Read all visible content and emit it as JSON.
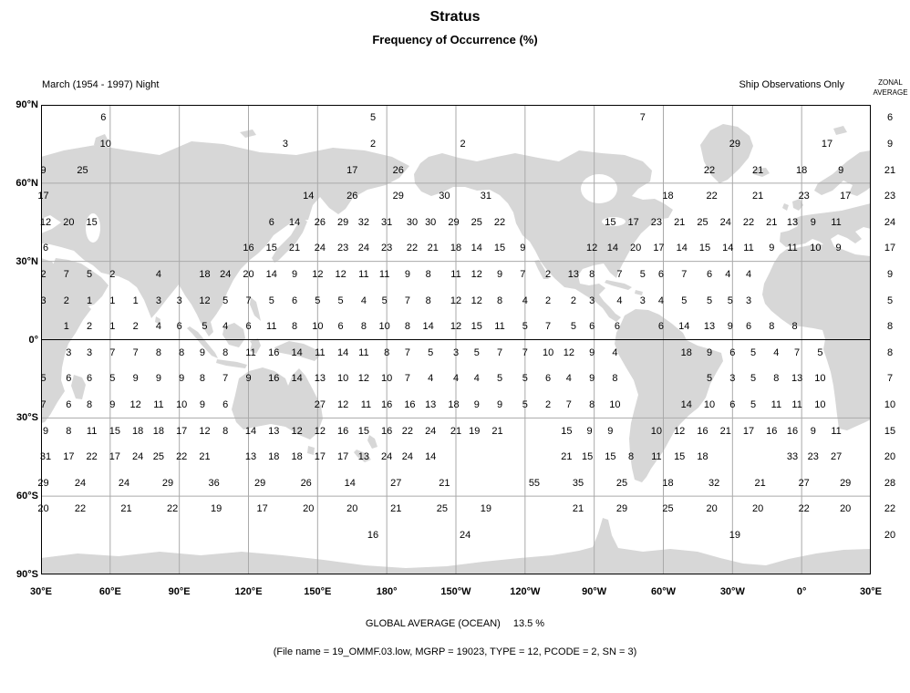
{
  "header": {
    "title": "Stratus",
    "subtitle": "Frequency of Occurrence (%)",
    "period": "March (1954 - 1997) Night",
    "source": "Ship Observations Only",
    "zonal_line1": "ZONAL",
    "zonal_line2": "AVERAGE"
  },
  "axes": {
    "lat": [
      "90°N",
      "60°N",
      "30°N",
      "0°",
      "30°S",
      "60°S",
      "90°S"
    ],
    "lon": [
      "30°E",
      "60°E",
      "90°E",
      "120°E",
      "150°E",
      "180°",
      "150°W",
      "120°W",
      "90°W",
      "60°W",
      "30°W",
      "0°",
      "30°E"
    ]
  },
  "footer": {
    "global_label": "GLOBAL AVERAGE (OCEAN)",
    "global_value": "13.5 %",
    "file_info": "(File name = 19_OMMF.03.low, MGRP = 19023, TYPE = 12, PCODE = 2, SN = 3)"
  },
  "colors": {
    "land": "#d7d7d7",
    "gridline": "#aaaaaa",
    "border": "#000000",
    "text": "#000000"
  },
  "chart_data": {
    "type": "heatmap",
    "title": "Stratus",
    "subtitle": "Frequency of Occurrence (%)",
    "units": "percent frequency of occurrence",
    "x_axis_labels": [
      "30°E",
      "60°E",
      "90°E",
      "120°E",
      "150°E",
      "180°",
      "150°W",
      "120°W",
      "90°W",
      "60°W",
      "30°W",
      "0°",
      "30°E"
    ],
    "y_axis_labels": [
      "90°N",
      "60°N",
      "30°N",
      "0°",
      "30°S",
      "60°S",
      "90°S"
    ],
    "global_average_ocean_pct": 13.5,
    "zonal_average": [
      6,
      9,
      21,
      23,
      24,
      17,
      9,
      5,
      8,
      8,
      7,
      10,
      15,
      20,
      28,
      22,
      20,
      null
    ],
    "rows_note": "18 latitude rows (10° bands, 90N to 90S); each value is [x-position in 10°-cell units from 30°E, value]",
    "rows": [
      [
        [
          2.7,
          6
        ],
        [
          14.4,
          5
        ],
        [
          26.1,
          7
        ]
      ],
      [
        [
          2.8,
          10
        ],
        [
          10.6,
          3
        ],
        [
          14.4,
          2
        ],
        [
          18.3,
          2
        ],
        [
          30.1,
          29
        ],
        [
          34.1,
          17
        ]
      ],
      [
        [
          0.1,
          9
        ],
        [
          1.8,
          25
        ],
        [
          13.5,
          17
        ],
        [
          15.5,
          26
        ],
        [
          29.0,
          22
        ],
        [
          31.1,
          21
        ],
        [
          33.0,
          18
        ],
        [
          34.7,
          9
        ]
      ],
      [
        [
          0.1,
          17
        ],
        [
          11.6,
          14
        ],
        [
          13.5,
          26
        ],
        [
          15.5,
          29
        ],
        [
          17.5,
          30
        ],
        [
          19.3,
          31
        ],
        [
          27.2,
          18
        ],
        [
          29.1,
          22
        ],
        [
          31.1,
          21
        ],
        [
          33.1,
          23
        ],
        [
          34.9,
          17
        ]
      ],
      [
        [
          0.2,
          12
        ],
        [
          1.2,
          20
        ],
        [
          2.2,
          15
        ],
        [
          10,
          6
        ],
        [
          11,
          14
        ],
        [
          12.1,
          26
        ],
        [
          13.1,
          29
        ],
        [
          14,
          32
        ],
        [
          15,
          31
        ],
        [
          16.1,
          30
        ],
        [
          16.9,
          30
        ],
        [
          17.9,
          29
        ],
        [
          18.9,
          25
        ],
        [
          19.9,
          22
        ],
        [
          24.7,
          15
        ],
        [
          25.7,
          17
        ],
        [
          26.7,
          23
        ],
        [
          27.7,
          21
        ],
        [
          28.7,
          25
        ],
        [
          29.7,
          24
        ],
        [
          30.7,
          22
        ],
        [
          31.7,
          21
        ],
        [
          32.6,
          13
        ],
        [
          33.5,
          9
        ],
        [
          34.5,
          11
        ]
      ],
      [
        [
          0.2,
          6
        ],
        [
          9,
          16
        ],
        [
          10,
          15
        ],
        [
          11,
          21
        ],
        [
          12.1,
          24
        ],
        [
          13.1,
          23
        ],
        [
          14,
          24
        ],
        [
          15,
          23
        ],
        [
          16.1,
          22
        ],
        [
          17,
          21
        ],
        [
          18,
          18
        ],
        [
          18.9,
          14
        ],
        [
          19.9,
          15
        ],
        [
          20.9,
          9
        ],
        [
          23.9,
          12
        ],
        [
          24.8,
          14
        ],
        [
          25.8,
          20
        ],
        [
          26.8,
          17
        ],
        [
          27.8,
          14
        ],
        [
          28.8,
          15
        ],
        [
          29.8,
          14
        ],
        [
          30.7,
          11
        ],
        [
          31.7,
          9
        ],
        [
          32.6,
          11
        ],
        [
          33.6,
          10
        ],
        [
          34.6,
          9
        ]
      ],
      [
        [
          0.1,
          2
        ],
        [
          1.1,
          7
        ],
        [
          2.1,
          5
        ],
        [
          3.1,
          2
        ],
        [
          5.1,
          4
        ],
        [
          7.1,
          18
        ],
        [
          8,
          24
        ],
        [
          9,
          20
        ],
        [
          10,
          14
        ],
        [
          11,
          9
        ],
        [
          12,
          12
        ],
        [
          13,
          12
        ],
        [
          14,
          11
        ],
        [
          14.9,
          11
        ],
        [
          15.9,
          9
        ],
        [
          16.8,
          8
        ],
        [
          18,
          11
        ],
        [
          18.9,
          12
        ],
        [
          19.9,
          9
        ],
        [
          20.9,
          7
        ],
        [
          22,
          2
        ],
        [
          23.1,
          13
        ],
        [
          23.9,
          8
        ],
        [
          25.1,
          7
        ],
        [
          26.1,
          5
        ],
        [
          26.9,
          6
        ],
        [
          27.9,
          7
        ],
        [
          29,
          6
        ],
        [
          29.8,
          4
        ],
        [
          30.7,
          4
        ]
      ],
      [
        [
          0.1,
          3
        ],
        [
          1.1,
          2
        ],
        [
          2.1,
          1
        ],
        [
          3.1,
          1
        ],
        [
          4.1,
          1
        ],
        [
          5.1,
          3
        ],
        [
          6,
          3
        ],
        [
          7.1,
          12
        ],
        [
          8,
          5
        ],
        [
          9,
          7
        ],
        [
          10,
          5
        ],
        [
          11,
          6
        ],
        [
          12,
          5
        ],
        [
          13,
          5
        ],
        [
          14,
          4
        ],
        [
          14.9,
          5
        ],
        [
          15.9,
          7
        ],
        [
          16.8,
          8
        ],
        [
          18,
          12
        ],
        [
          18.9,
          12
        ],
        [
          19.9,
          8
        ],
        [
          21,
          4
        ],
        [
          22,
          2
        ],
        [
          23.1,
          2
        ],
        [
          23.9,
          3
        ],
        [
          25.1,
          4
        ],
        [
          26.1,
          3
        ],
        [
          26.9,
          4
        ],
        [
          27.9,
          5
        ],
        [
          29,
          5
        ],
        [
          29.9,
          5
        ],
        [
          30.7,
          3
        ]
      ],
      [
        [
          1.1,
          1
        ],
        [
          2.1,
          2
        ],
        [
          3.1,
          1
        ],
        [
          4.1,
          2
        ],
        [
          5.1,
          4
        ],
        [
          6,
          6
        ],
        [
          7.1,
          5
        ],
        [
          8,
          4
        ],
        [
          9,
          6
        ],
        [
          10,
          11
        ],
        [
          11,
          8
        ],
        [
          12,
          10
        ],
        [
          13,
          6
        ],
        [
          14,
          8
        ],
        [
          14.9,
          10
        ],
        [
          15.9,
          8
        ],
        [
          16.8,
          14
        ],
        [
          18,
          12
        ],
        [
          18.9,
          15
        ],
        [
          19.9,
          11
        ],
        [
          21,
          5
        ],
        [
          22,
          7
        ],
        [
          23.1,
          5
        ],
        [
          23.9,
          6
        ],
        [
          25,
          6
        ],
        [
          26.9,
          6
        ],
        [
          27.9,
          14
        ],
        [
          29,
          13
        ],
        [
          29.9,
          9
        ],
        [
          30.7,
          6
        ],
        [
          31.7,
          8
        ],
        [
          32.7,
          8
        ]
      ],
      [
        [
          1.2,
          3
        ],
        [
          2.1,
          3
        ],
        [
          3.1,
          7
        ],
        [
          4.1,
          7
        ],
        [
          5.1,
          8
        ],
        [
          6.1,
          8
        ],
        [
          7,
          9
        ],
        [
          8,
          8
        ],
        [
          9.1,
          11
        ],
        [
          10.1,
          16
        ],
        [
          11.1,
          14
        ],
        [
          12.1,
          11
        ],
        [
          13.1,
          14
        ],
        [
          14,
          11
        ],
        [
          15,
          8
        ],
        [
          15.9,
          7
        ],
        [
          16.9,
          5
        ],
        [
          18,
          3
        ],
        [
          18.9,
          5
        ],
        [
          19.9,
          7
        ],
        [
          21,
          7
        ],
        [
          22,
          10
        ],
        [
          22.9,
          12
        ],
        [
          23.9,
          9
        ],
        [
          24.9,
          4
        ],
        [
          28,
          18
        ],
        [
          29,
          9
        ],
        [
          30,
          6
        ],
        [
          30.9,
          5
        ],
        [
          31.9,
          4
        ],
        [
          32.8,
          7
        ],
        [
          33.8,
          5
        ]
      ],
      [
        [
          0.1,
          5
        ],
        [
          1.2,
          6
        ],
        [
          2.1,
          6
        ],
        [
          3.1,
          5
        ],
        [
          4.1,
          9
        ],
        [
          5.1,
          9
        ],
        [
          6.1,
          9
        ],
        [
          7,
          8
        ],
        [
          8,
          7
        ],
        [
          9,
          9
        ],
        [
          10.1,
          16
        ],
        [
          11.1,
          14
        ],
        [
          12.1,
          13
        ],
        [
          13.1,
          10
        ],
        [
          14,
          12
        ],
        [
          15,
          10
        ],
        [
          15.9,
          7
        ],
        [
          16.9,
          4
        ],
        [
          18,
          4
        ],
        [
          18.9,
          4
        ],
        [
          19.9,
          5
        ],
        [
          21,
          5
        ],
        [
          22,
          6
        ],
        [
          22.9,
          4
        ],
        [
          23.9,
          9
        ],
        [
          24.9,
          8
        ],
        [
          29,
          5
        ],
        [
          30,
          3
        ],
        [
          30.9,
          5
        ],
        [
          31.9,
          8
        ],
        [
          32.8,
          13
        ],
        [
          33.8,
          10
        ]
      ],
      [
        [
          0.1,
          7
        ],
        [
          1.2,
          6
        ],
        [
          2.1,
          8
        ],
        [
          3.1,
          9
        ],
        [
          4.1,
          12
        ],
        [
          5.1,
          11
        ],
        [
          6.1,
          10
        ],
        [
          7,
          9
        ],
        [
          8,
          6
        ],
        [
          12.1,
          27
        ],
        [
          13.1,
          12
        ],
        [
          14.1,
          11
        ],
        [
          15,
          16
        ],
        [
          16,
          16
        ],
        [
          16.9,
          13
        ],
        [
          17.9,
          18
        ],
        [
          18.9,
          9
        ],
        [
          19.9,
          9
        ],
        [
          21,
          5
        ],
        [
          22,
          2
        ],
        [
          22.9,
          7
        ],
        [
          23.9,
          8
        ],
        [
          24.9,
          10
        ],
        [
          28,
          14
        ],
        [
          29,
          10
        ],
        [
          30,
          6
        ],
        [
          30.9,
          5
        ],
        [
          31.9,
          11
        ],
        [
          32.8,
          11
        ],
        [
          33.8,
          10
        ]
      ],
      [
        [
          0.2,
          9
        ],
        [
          1.2,
          8
        ],
        [
          2.2,
          11
        ],
        [
          3.2,
          15
        ],
        [
          4.2,
          18
        ],
        [
          5.1,
          18
        ],
        [
          6.1,
          17
        ],
        [
          7.1,
          12
        ],
        [
          8,
          8
        ],
        [
          9.1,
          14
        ],
        [
          10.1,
          13
        ],
        [
          11.1,
          12
        ],
        [
          12.1,
          12
        ],
        [
          13.1,
          16
        ],
        [
          14,
          15
        ],
        [
          15,
          16
        ],
        [
          15.9,
          22
        ],
        [
          16.9,
          24
        ],
        [
          18,
          21
        ],
        [
          18.8,
          19
        ],
        [
          19.8,
          21
        ],
        [
          22.8,
          15
        ],
        [
          23.8,
          9
        ],
        [
          24.7,
          9
        ],
        [
          26.7,
          10
        ],
        [
          27.7,
          12
        ],
        [
          28.7,
          16
        ],
        [
          29.7,
          21
        ],
        [
          30.7,
          17
        ],
        [
          31.7,
          16
        ],
        [
          32.6,
          16
        ],
        [
          33.5,
          9
        ],
        [
          34.5,
          11
        ]
      ],
      [
        [
          0.2,
          31
        ],
        [
          1.2,
          17
        ],
        [
          2.2,
          22
        ],
        [
          3.2,
          17
        ],
        [
          4.2,
          24
        ],
        [
          5.1,
          25
        ],
        [
          6.1,
          22
        ],
        [
          7.1,
          21
        ],
        [
          9.1,
          13
        ],
        [
          10.1,
          18
        ],
        [
          11.1,
          18
        ],
        [
          12.1,
          17
        ],
        [
          13.1,
          17
        ],
        [
          14,
          13
        ],
        [
          15,
          24
        ],
        [
          15.9,
          24
        ],
        [
          16.9,
          14
        ],
        [
          22.8,
          21
        ],
        [
          23.7,
          15
        ],
        [
          24.7,
          15
        ],
        [
          25.6,
          8
        ],
        [
          26.7,
          11
        ],
        [
          27.7,
          15
        ],
        [
          28.7,
          18
        ],
        [
          32.6,
          33
        ],
        [
          33.5,
          23
        ],
        [
          34.5,
          27
        ]
      ],
      [
        [
          0.1,
          29
        ],
        [
          1.7,
          24
        ],
        [
          3.6,
          24
        ],
        [
          5.5,
          29
        ],
        [
          7.5,
          36
        ],
        [
          9.5,
          29
        ],
        [
          11.5,
          26
        ],
        [
          13.4,
          14
        ],
        [
          15.4,
          27
        ],
        [
          17.5,
          21
        ],
        [
          21.4,
          55
        ],
        [
          23.3,
          35
        ],
        [
          25.2,
          25
        ],
        [
          27.2,
          18
        ],
        [
          29.2,
          32
        ],
        [
          31.2,
          21
        ],
        [
          33.1,
          27
        ],
        [
          34.9,
          29
        ]
      ],
      [
        [
          0.1,
          20
        ],
        [
          1.7,
          22
        ],
        [
          3.7,
          21
        ],
        [
          5.7,
          22
        ],
        [
          7.6,
          19
        ],
        [
          9.6,
          17
        ],
        [
          11.6,
          20
        ],
        [
          13.5,
          20
        ],
        [
          15.4,
          21
        ],
        [
          17.4,
          25
        ],
        [
          19.3,
          19
        ],
        [
          23.3,
          21
        ],
        [
          25.2,
          29
        ],
        [
          27.2,
          25
        ],
        [
          29.1,
          20
        ],
        [
          31.1,
          20
        ],
        [
          33.1,
          22
        ],
        [
          34.9,
          20
        ]
      ],
      [
        [
          14.4,
          16
        ],
        [
          18.4,
          24
        ],
        [
          30.1,
          19
        ]
      ],
      []
    ]
  }
}
